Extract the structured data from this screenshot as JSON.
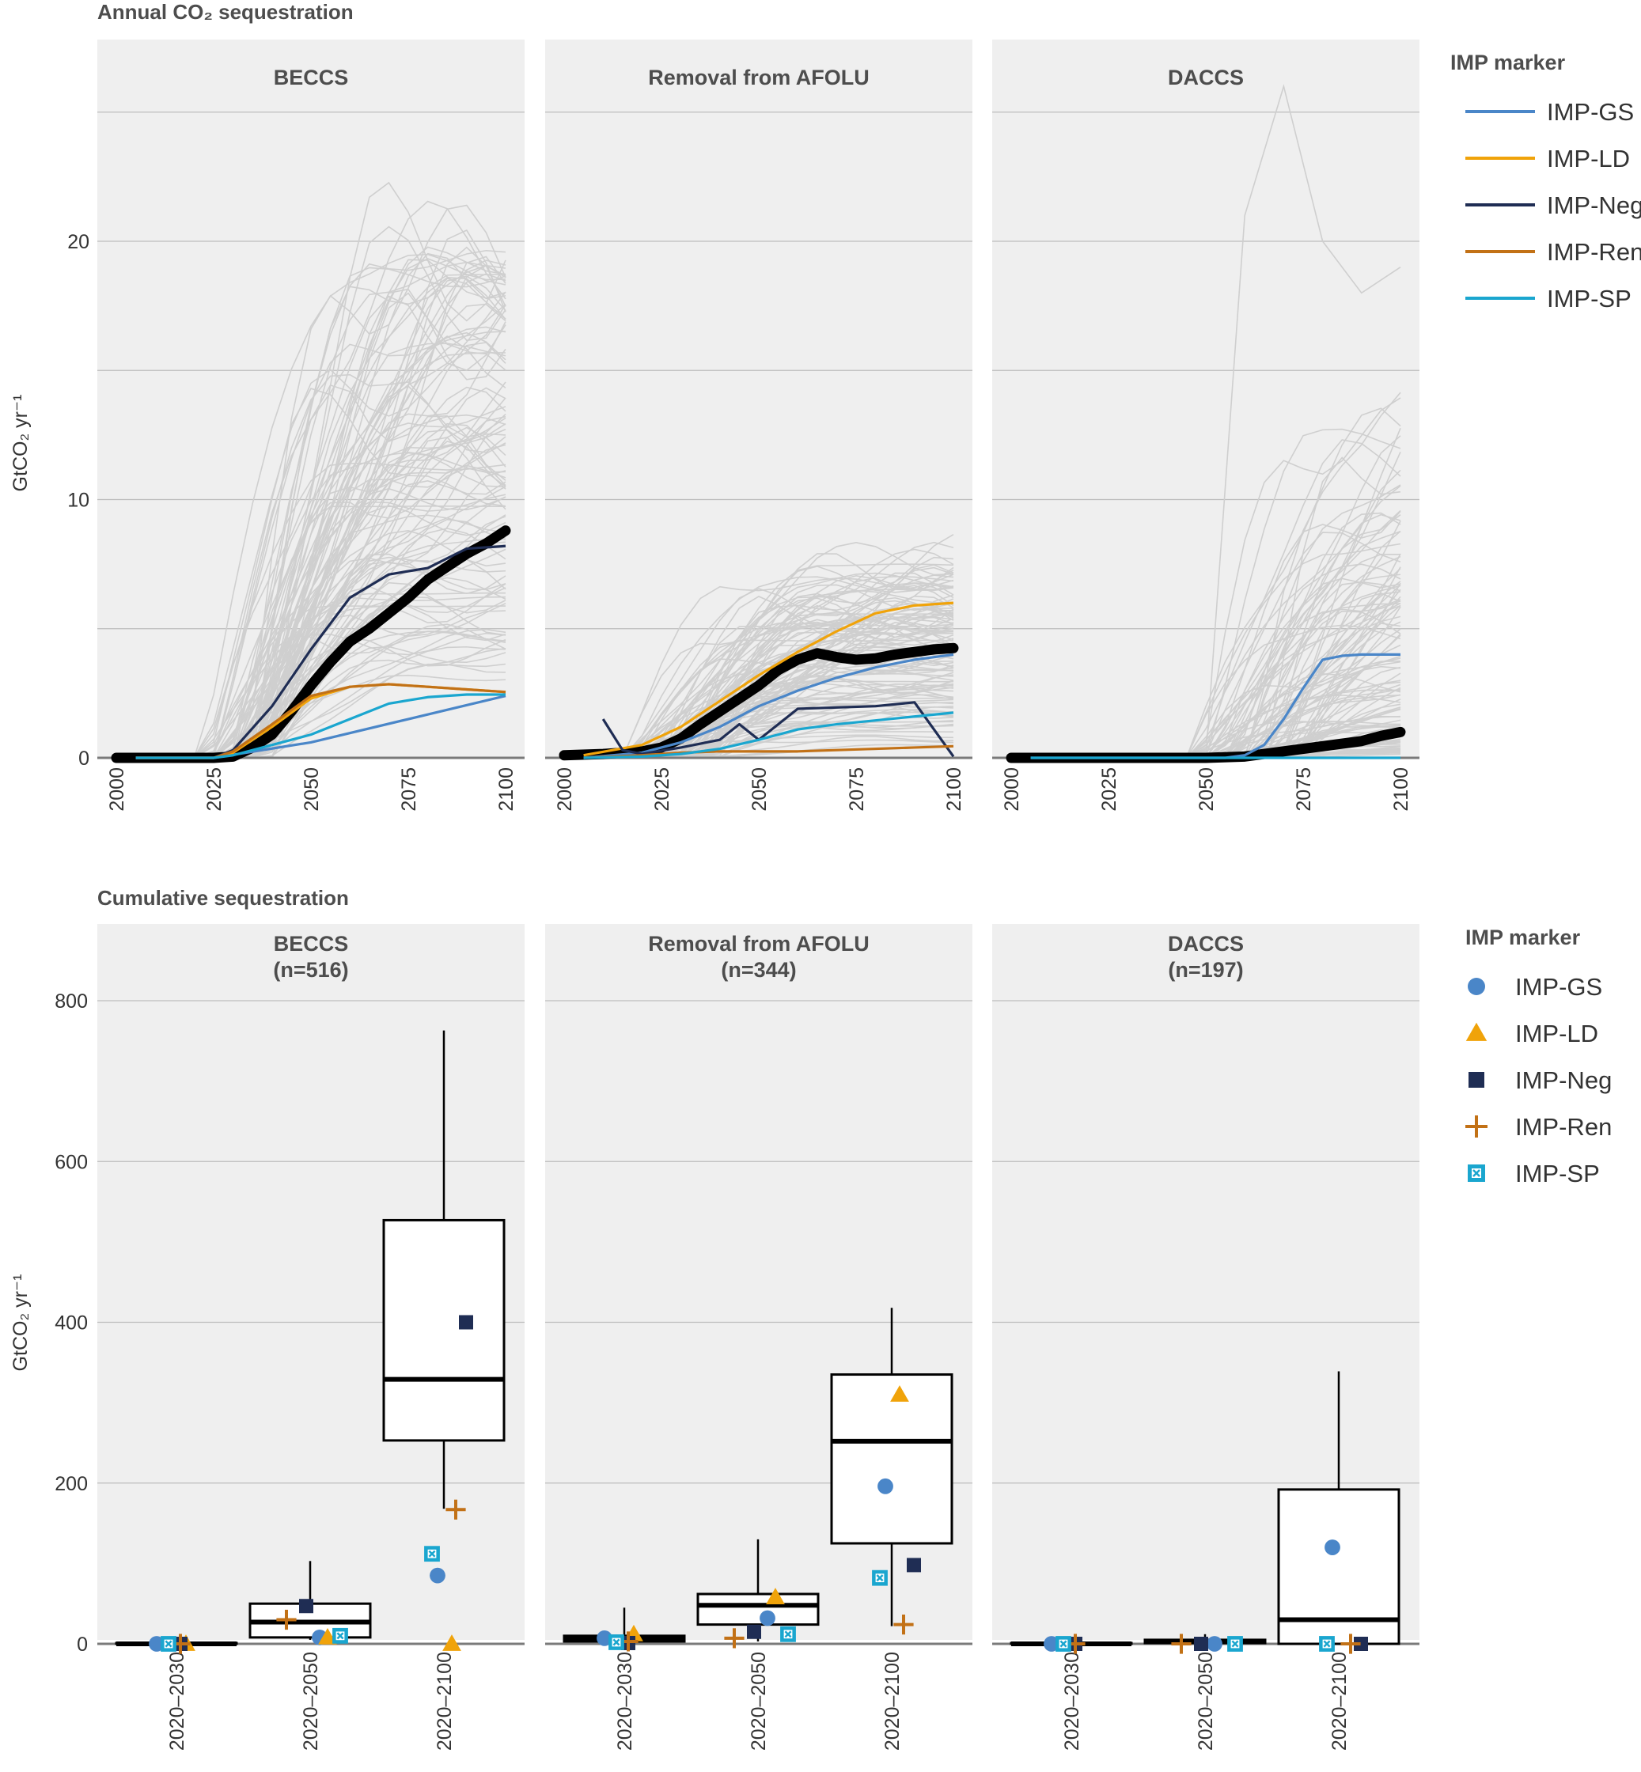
{
  "figure": {
    "top_title": "Annual CO₂ sequestration",
    "bottom_title": "Cumulative sequestration",
    "y_label_top": "GtCO₂ yr⁻¹",
    "y_label_bottom": "GtCO₂ yr⁻¹",
    "legend_title_top": "IMP marker",
    "legend_title_bottom": "IMP marker"
  },
  "markers": [
    {
      "name": "IMP-GS",
      "color": "#4a86c8",
      "symbol": "circle"
    },
    {
      "name": "IMP-LD",
      "color": "#f0a30a",
      "symbol": "triangle"
    },
    {
      "name": "IMP-Neg",
      "color": "#1f2d54",
      "symbol": "square"
    },
    {
      "name": "IMP-Ren",
      "color": "#c27116",
      "symbol": "plus"
    },
    {
      "name": "IMP-SP",
      "color": "#1aa6cf",
      "symbol": "boxed-x"
    }
  ],
  "chart_data": [
    {
      "type": "line",
      "title": "BECCS",
      "xlim": [
        2000,
        2100
      ],
      "ylim": [
        0,
        25
      ],
      "x_ticks": [
        2000,
        2025,
        2050,
        2075,
        2100
      ],
      "y_ticks": [
        0,
        10,
        20
      ],
      "grid": true,
      "background_series": "grey ensemble of scenario pathways",
      "series": [
        {
          "name": "median",
          "x": [
            2000,
            2020,
            2025,
            2030,
            2035,
            2040,
            2045,
            2050,
            2055,
            2060,
            2065,
            2070,
            2075,
            2080,
            2085,
            2090,
            2095,
            2100
          ],
          "y": [
            0,
            0,
            0,
            0.05,
            0.4,
            0.9,
            1.8,
            2.8,
            3.7,
            4.5,
            5.0,
            5.6,
            6.2,
            6.9,
            7.4,
            7.9,
            8.3,
            8.8
          ]
        },
        {
          "name": "IMP-GS",
          "x": [
            2005,
            2025,
            2050,
            2075,
            2100
          ],
          "y": [
            0,
            0,
            0.6,
            1.5,
            2.4
          ]
        },
        {
          "name": "IMP-LD",
          "x": [
            2005,
            2025,
            2030,
            2040,
            2050,
            2060,
            2070,
            2080,
            2090,
            2100
          ],
          "y": [
            0,
            0,
            0.2,
            1.2,
            2.3,
            2.75,
            2.85,
            2.75,
            2.65,
            2.55
          ]
        },
        {
          "name": "IMP-Neg",
          "x": [
            2005,
            2025,
            2030,
            2040,
            2050,
            2060,
            2070,
            2080,
            2090,
            2100
          ],
          "y": [
            0,
            0,
            0.3,
            2.0,
            4.2,
            6.2,
            7.1,
            7.35,
            8.1,
            8.2
          ]
        },
        {
          "name": "IMP-Ren",
          "x": [
            2005,
            2025,
            2030,
            2040,
            2050,
            2060,
            2070,
            2080,
            2090,
            2100
          ],
          "y": [
            0,
            0,
            0.25,
            1.3,
            2.4,
            2.75,
            2.85,
            2.75,
            2.65,
            2.55
          ]
        },
        {
          "name": "IMP-SP",
          "x": [
            2005,
            2025,
            2030,
            2040,
            2050,
            2060,
            2070,
            2080,
            2090,
            2100
          ],
          "y": [
            0,
            0,
            0.1,
            0.5,
            0.9,
            1.5,
            2.1,
            2.35,
            2.45,
            2.45
          ]
        }
      ]
    },
    {
      "type": "line",
      "title": "Removal from AFOLU",
      "xlim": [
        2000,
        2100
      ],
      "ylim": [
        0,
        25
      ],
      "x_ticks": [
        2000,
        2025,
        2050,
        2075,
        2100
      ],
      "y_ticks": [
        0,
        10,
        20
      ],
      "grid": true,
      "background_series": "grey ensemble of scenario pathways",
      "series": [
        {
          "name": "median",
          "x": [
            2000,
            2010,
            2020,
            2025,
            2030,
            2035,
            2040,
            2045,
            2050,
            2055,
            2060,
            2065,
            2070,
            2075,
            2080,
            2085,
            2090,
            2095,
            2100
          ],
          "y": [
            0.1,
            0.15,
            0.25,
            0.4,
            0.75,
            1.3,
            1.8,
            2.3,
            2.8,
            3.4,
            3.8,
            4.05,
            3.9,
            3.8,
            3.85,
            4.0,
            4.1,
            4.2,
            4.25
          ]
        },
        {
          "name": "IMP-GS",
          "x": [
            2005,
            2020,
            2030,
            2040,
            2050,
            2060,
            2070,
            2080,
            2090,
            2100
          ],
          "y": [
            0,
            0.2,
            0.6,
            1.2,
            2.0,
            2.6,
            3.1,
            3.5,
            3.8,
            4.0
          ]
        },
        {
          "name": "IMP-LD",
          "x": [
            2005,
            2020,
            2030,
            2040,
            2050,
            2060,
            2070,
            2080,
            2090,
            2100
          ],
          "y": [
            0.1,
            0.5,
            1.2,
            2.2,
            3.2,
            4.1,
            4.9,
            5.6,
            5.9,
            6.0
          ]
        },
        {
          "name": "IMP-Neg",
          "x": [
            2010,
            2015,
            2020,
            2030,
            2040,
            2045,
            2050,
            2060,
            2070,
            2080,
            2090,
            2100
          ],
          "y": [
            1.5,
            0.3,
            0.15,
            0.4,
            0.7,
            1.3,
            0.7,
            1.9,
            1.95,
            2.0,
            2.15,
            0.05
          ]
        },
        {
          "name": "IMP-Ren",
          "x": [
            2005,
            2020,
            2030,
            2040,
            2050,
            2060,
            2070,
            2080,
            2090,
            2100
          ],
          "y": [
            0,
            0.1,
            0.2,
            0.25,
            0.25,
            0.25,
            0.3,
            0.35,
            0.4,
            0.45
          ]
        },
        {
          "name": "IMP-SP",
          "x": [
            2005,
            2020,
            2030,
            2040,
            2050,
            2060,
            2070,
            2080,
            2090,
            2100
          ],
          "y": [
            0,
            0.05,
            0.15,
            0.35,
            0.7,
            1.1,
            1.3,
            1.45,
            1.6,
            1.75
          ]
        }
      ]
    },
    {
      "type": "line",
      "title": "DACCS",
      "xlim": [
        2000,
        2100
      ],
      "ylim": [
        0,
        25
      ],
      "x_ticks": [
        2000,
        2025,
        2050,
        2075,
        2100
      ],
      "y_ticks": [
        0,
        10,
        20
      ],
      "grid": true,
      "background_series": "grey ensemble of scenario pathways",
      "series": [
        {
          "name": "median",
          "x": [
            2000,
            2050,
            2060,
            2065,
            2070,
            2075,
            2080,
            2085,
            2090,
            2095,
            2100
          ],
          "y": [
            0,
            0,
            0.05,
            0.15,
            0.25,
            0.35,
            0.45,
            0.55,
            0.65,
            0.85,
            1.0
          ]
        },
        {
          "name": "IMP-GS",
          "x": [
            2005,
            2055,
            2060,
            2065,
            2070,
            2075,
            2080,
            2085,
            2090,
            2100
          ],
          "y": [
            0,
            0,
            0.1,
            0.5,
            1.5,
            2.7,
            3.8,
            3.95,
            4.0,
            4.0
          ]
        },
        {
          "name": "IMP-SP",
          "x": [
            2005,
            2100
          ],
          "y": [
            0,
            0
          ]
        }
      ]
    },
    {
      "type": "box",
      "title": "BECCS",
      "subtitle": "(n=516)",
      "categories": [
        "2020–2030",
        "2020–2050",
        "2020–2100"
      ],
      "ylim": [
        0,
        900
      ],
      "y_ticks": [
        0,
        200,
        400,
        600,
        800
      ],
      "grid": true,
      "boxes": [
        {
          "whisker_low": 0,
          "q1": 0,
          "median": 0,
          "q3": 1,
          "whisker_high": 2
        },
        {
          "whisker_low": 5,
          "q1": 8,
          "median": 27,
          "q3": 50,
          "whisker_high": 103
        },
        {
          "whisker_low": 168,
          "q1": 253,
          "median": 329,
          "q3": 527,
          "whisker_high": 763
        }
      ],
      "markers": [
        {
          "name": "IMP-GS",
          "values": [
            0,
            8,
            85
          ]
        },
        {
          "name": "IMP-LD",
          "values": [
            0,
            8,
            0
          ]
        },
        {
          "name": "IMP-Neg",
          "values": [
            0,
            47,
            400
          ]
        },
        {
          "name": "IMP-Ren",
          "values": [
            0,
            30,
            167
          ]
        },
        {
          "name": "IMP-SP",
          "values": [
            0,
            10,
            112
          ]
        }
      ]
    },
    {
      "type": "box",
      "title": "Removal from AFOLU",
      "subtitle": "(n=344)",
      "categories": [
        "2020–2030",
        "2020–2050",
        "2020–2100"
      ],
      "ylim": [
        0,
        900
      ],
      "y_ticks": [
        0,
        200,
        400,
        600,
        800
      ],
      "grid": true,
      "boxes": [
        {
          "whisker_low": 0,
          "q1": 3,
          "median": 7,
          "q3": 10,
          "whisker_high": 45
        },
        {
          "whisker_low": 3,
          "q1": 24,
          "median": 48,
          "q3": 62,
          "whisker_high": 130
        },
        {
          "whisker_low": 22,
          "q1": 125,
          "median": 252,
          "q3": 335,
          "whisker_high": 418
        }
      ],
      "markers": [
        {
          "name": "IMP-GS",
          "values": [
            7,
            32,
            196
          ]
        },
        {
          "name": "IMP-LD",
          "values": [
            12,
            58,
            310
          ]
        },
        {
          "name": "IMP-Neg",
          "values": [
            1,
            15,
            98
          ]
        },
        {
          "name": "IMP-Ren",
          "values": [
            3,
            7,
            24
          ]
        },
        {
          "name": "IMP-SP",
          "values": [
            2,
            12,
            82
          ]
        }
      ]
    },
    {
      "type": "box",
      "title": "DACCS",
      "subtitle": "(n=197)",
      "categories": [
        "2020–2030",
        "2020–2050",
        "2020–2100"
      ],
      "ylim": [
        0,
        900
      ],
      "y_ticks": [
        0,
        200,
        400,
        600,
        800
      ],
      "grid": true,
      "boxes": [
        {
          "whisker_low": 0,
          "q1": 0,
          "median": 0,
          "q3": 1,
          "whisker_high": 2
        },
        {
          "whisker_low": 0,
          "q1": 1,
          "median": 3,
          "q3": 5,
          "whisker_high": 12
        },
        {
          "whisker_low": 0,
          "q1": 0,
          "median": 30,
          "q3": 192,
          "whisker_high": 339
        }
      ],
      "markers": [
        {
          "name": "IMP-GS",
          "values": [
            0,
            0,
            120
          ]
        },
        {
          "name": "IMP-Neg",
          "values": [
            0,
            0,
            0
          ]
        },
        {
          "name": "IMP-Ren",
          "values": [
            0,
            0,
            0
          ]
        },
        {
          "name": "IMP-SP",
          "values": [
            0,
            0,
            0
          ]
        }
      ]
    }
  ]
}
